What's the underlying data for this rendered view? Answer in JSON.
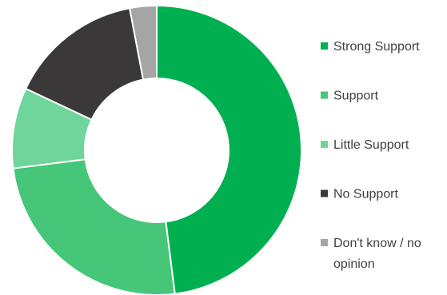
{
  "chart_data": {
    "type": "pie",
    "style": "donut",
    "title": "",
    "legend_position": "right",
    "categories": [
      "Strong Support",
      "Support",
      "Little Support",
      "No Support",
      "Don't know / no opinion"
    ],
    "legend_lines": [
      [
        "Strong Support"
      ],
      [
        "Support"
      ],
      [
        "Little Support"
      ],
      [
        "No Support"
      ],
      [
        "Don't know / no",
        "opinion"
      ]
    ],
    "values": [
      48,
      25,
      9,
      15,
      3
    ],
    "unit": "percent",
    "colors": [
      "#00b050",
      "#45c678",
      "#6fd59b",
      "#3a3838",
      "#a5a5a5"
    ]
  }
}
